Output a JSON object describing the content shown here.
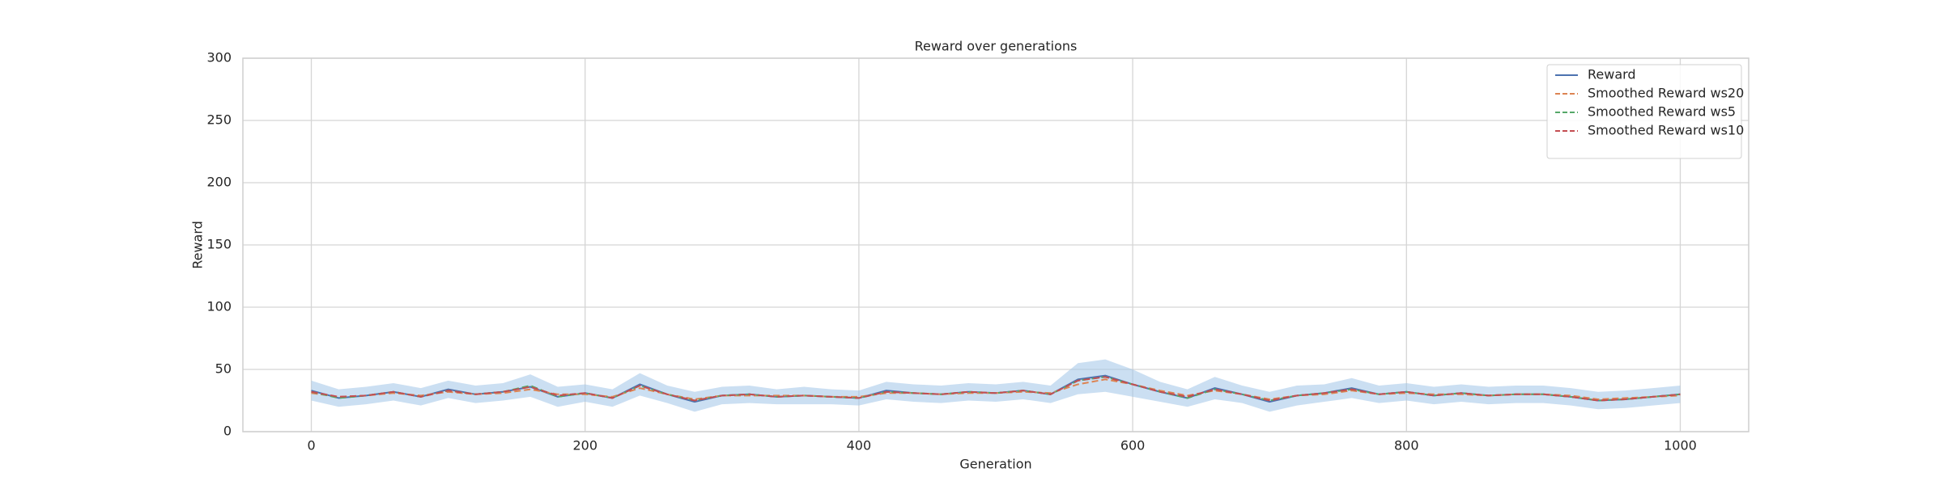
{
  "chart_data": {
    "type": "line",
    "title": "Reward over generations",
    "xlabel": "Generation",
    "ylabel": "Reward",
    "x": [
      0,
      20,
      40,
      60,
      80,
      100,
      120,
      140,
      160,
      180,
      200,
      220,
      240,
      260,
      280,
      300,
      320,
      340,
      360,
      380,
      400,
      420,
      440,
      460,
      480,
      500,
      520,
      540,
      560,
      580,
      600,
      620,
      640,
      660,
      680,
      700,
      720,
      740,
      760,
      780,
      800,
      820,
      840,
      860,
      880,
      900,
      920,
      940,
      960,
      980,
      1000
    ],
    "series": [
      {
        "name": "Reward",
        "color": "#4c72b0",
        "dashed": false,
        "values": [
          33,
          27,
          29,
          32,
          28,
          34,
          30,
          32,
          36,
          28,
          31,
          27,
          38,
          30,
          24,
          29,
          30,
          28,
          29,
          28,
          27,
          33,
          31,
          30,
          32,
          31,
          33,
          30,
          42,
          45,
          38,
          32,
          27,
          35,
          30,
          24,
          29,
          31,
          35,
          30,
          32,
          29,
          31,
          29,
          30,
          30,
          28,
          25,
          26,
          28,
          30
        ]
      },
      {
        "name": "Smoothed Reward ws20",
        "color": "#dd8452",
        "dashed": true,
        "values": [
          31,
          28,
          29,
          31,
          29,
          32,
          30,
          31,
          34,
          30,
          30,
          28,
          35,
          30,
          26,
          29,
          29,
          29,
          29,
          28,
          28,
          31,
          31,
          30,
          31,
          31,
          32,
          31,
          38,
          42,
          38,
          33,
          29,
          33,
          30,
          26,
          29,
          30,
          33,
          30,
          31,
          30,
          30,
          29,
          30,
          30,
          29,
          26,
          27,
          28,
          29
        ]
      },
      {
        "name": "Smoothed Reward ws5",
        "color": "#55a868",
        "dashed": true,
        "values": [
          32,
          27,
          29,
          32,
          28,
          33,
          30,
          32,
          37,
          28,
          31,
          27,
          37,
          30,
          25,
          29,
          30,
          28,
          29,
          28,
          27,
          32,
          31,
          30,
          32,
          31,
          33,
          30,
          41,
          44,
          38,
          32,
          27,
          34,
          30,
          25,
          29,
          31,
          34,
          30,
          32,
          29,
          31,
          29,
          30,
          30,
          28,
          25,
          26,
          28,
          30
        ]
      },
      {
        "name": "Smoothed Reward ws10",
        "color": "#c44e52",
        "dashed": true,
        "values": [
          32,
          28,
          29,
          32,
          28,
          33,
          30,
          32,
          36,
          29,
          31,
          27,
          37,
          30,
          25,
          29,
          30,
          28,
          29,
          28,
          27,
          32,
          31,
          30,
          32,
          31,
          33,
          30,
          41,
          44,
          38,
          32,
          28,
          34,
          30,
          25,
          29,
          31,
          34,
          30,
          32,
          29,
          31,
          29,
          30,
          30,
          28,
          25,
          26,
          28,
          30
        ]
      }
    ],
    "band": {
      "color": "#a1c4e8",
      "low": [
        25,
        20,
        22,
        25,
        21,
        27,
        23,
        25,
        28,
        20,
        24,
        20,
        29,
        23,
        16,
        22,
        23,
        22,
        22,
        22,
        21,
        26,
        24,
        23,
        25,
        24,
        26,
        23,
        30,
        32,
        28,
        24,
        20,
        26,
        23,
        16,
        21,
        24,
        27,
        23,
        25,
        22,
        24,
        22,
        23,
        23,
        21,
        18,
        19,
        21,
        23
      ],
      "high": [
        41,
        34,
        36,
        39,
        35,
        41,
        37,
        39,
        46,
        36,
        38,
        34,
        47,
        37,
        32,
        36,
        37,
        34,
        36,
        34,
        33,
        40,
        38,
        37,
        39,
        38,
        40,
        37,
        55,
        58,
        50,
        40,
        34,
        44,
        37,
        32,
        37,
        38,
        43,
        37,
        39,
        36,
        38,
        36,
        37,
        37,
        35,
        32,
        33,
        35,
        37
      ]
    },
    "xlim": [
      -50,
      1050
    ],
    "ylim": [
      0,
      300
    ],
    "xticks": [
      0,
      200,
      400,
      600,
      800,
      1000
    ],
    "yticks": [
      0,
      50,
      100,
      150,
      200,
      250,
      300
    ],
    "grid": true,
    "legend": "upper right"
  }
}
